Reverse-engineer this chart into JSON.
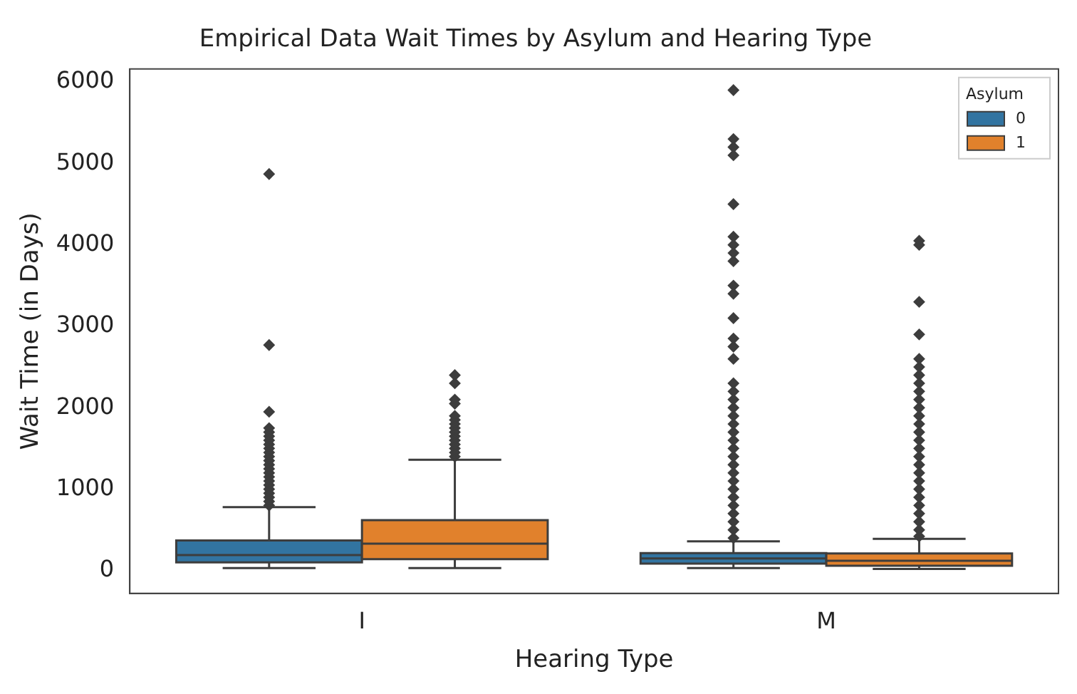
{
  "chart_data": {
    "type": "box",
    "title": "Empirical Data Wait Times by Asylum and Hearing Type",
    "xlabel": "Hearing Type",
    "ylabel": "Wait Time (in Days)",
    "legend_title": "Asylum",
    "legend": "top right",
    "grid": false,
    "marker": "diamond",
    "categories": [
      "I",
      "M"
    ],
    "ylim": [
      -280,
      6160
    ],
    "yticks": [
      0,
      1000,
      2000,
      3000,
      4000,
      5000,
      6000
    ],
    "series": [
      {
        "name": "0",
        "color": "#3274a1",
        "boxes": [
          {
            "low": 30,
            "q1": 100,
            "median": 190,
            "q3": 370,
            "high": 780,
            "outliers": [
              800,
              850,
              900,
              950,
              1000,
              1050,
              1100,
              1150,
              1200,
              1250,
              1300,
              1350,
              1400,
              1450,
              1500,
              1550,
              1600,
              1650,
              1700,
              1750,
              1950,
              2770,
              4870
            ]
          },
          {
            "low": 30,
            "q1": 85,
            "median": 150,
            "q3": 215,
            "high": 360,
            "outliers": [
              400,
              500,
              600,
              700,
              800,
              900,
              1000,
              1100,
              1200,
              1300,
              1400,
              1500,
              1600,
              1700,
              1800,
              1900,
              2000,
              2100,
              2200,
              2300,
              2600,
              2750,
              2850,
              3100,
              3400,
              3500,
              3800,
              3900,
              4000,
              4100,
              4500,
              5100,
              5200,
              5300,
              5900
            ]
          }
        ]
      },
      {
        "name": "1",
        "color": "#e1812c",
        "boxes": [
          {
            "low": 30,
            "q1": 140,
            "median": 330,
            "q3": 620,
            "high": 1360,
            "outliers": [
              1400,
              1450,
              1500,
              1550,
              1600,
              1650,
              1700,
              1750,
              1800,
              1850,
              1900,
              2050,
              2100,
              2300,
              2400
            ]
          },
          {
            "low": 20,
            "q1": 60,
            "median": 120,
            "q3": 210,
            "high": 390,
            "outliers": [
              420,
              500,
              600,
              700,
              800,
              900,
              1000,
              1100,
              1200,
              1300,
              1400,
              1500,
              1600,
              1700,
              1800,
              1900,
              2000,
              2100,
              2200,
              2300,
              2400,
              2500,
              2600,
              2900,
              3300,
              4000,
              4050
            ]
          }
        ]
      }
    ]
  }
}
